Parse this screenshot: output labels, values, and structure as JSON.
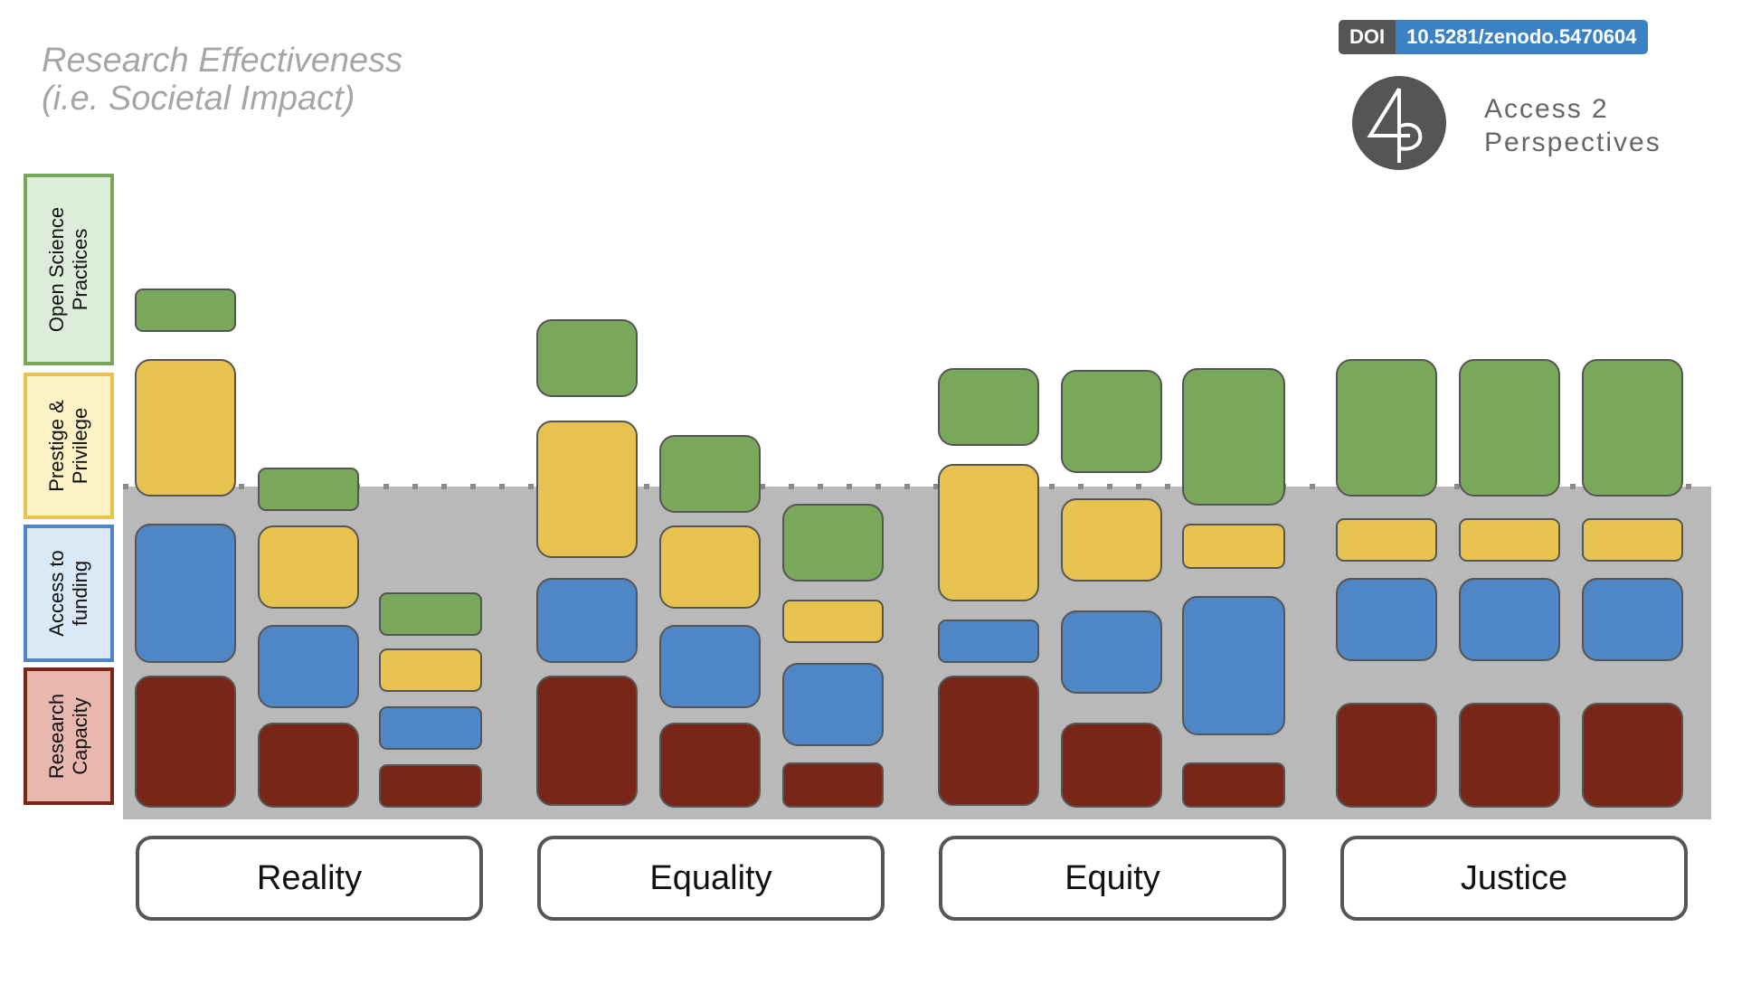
{
  "header": {
    "title_line1": "Research Effectiveness",
    "title_line2": "(i.e. Societal Impact)"
  },
  "doi": {
    "label": "DOI",
    "value": "10.5281/zenodo.5470604"
  },
  "brand": {
    "name_line1": "Access 2",
    "name_line2": "Perspectives",
    "logo_icon": "a2p-logo-icon"
  },
  "legend": [
    {
      "label": "Open Science\nPractices",
      "color": "#7aa85a",
      "fill": "#dceeda"
    },
    {
      "label": "Prestige &\nPrivilege",
      "color": "#e8c24f",
      "fill": "#fdf2c6"
    },
    {
      "label": "Access to\nfunding",
      "color": "#4f86c6",
      "fill": "#dbe8f6"
    },
    {
      "label": "Research\nCapacity",
      "color": "#7a2616",
      "fill": "#e8b7ae"
    }
  ],
  "scenarios": [
    "Reality",
    "Equality",
    "Equity",
    "Justice"
  ],
  "colors": {
    "open_science": "#7aa85a",
    "prestige": "#e8c24f",
    "funding": "#4f86c6",
    "capacity": "#7a2616",
    "baseline_band": "#b9b9b9"
  }
}
